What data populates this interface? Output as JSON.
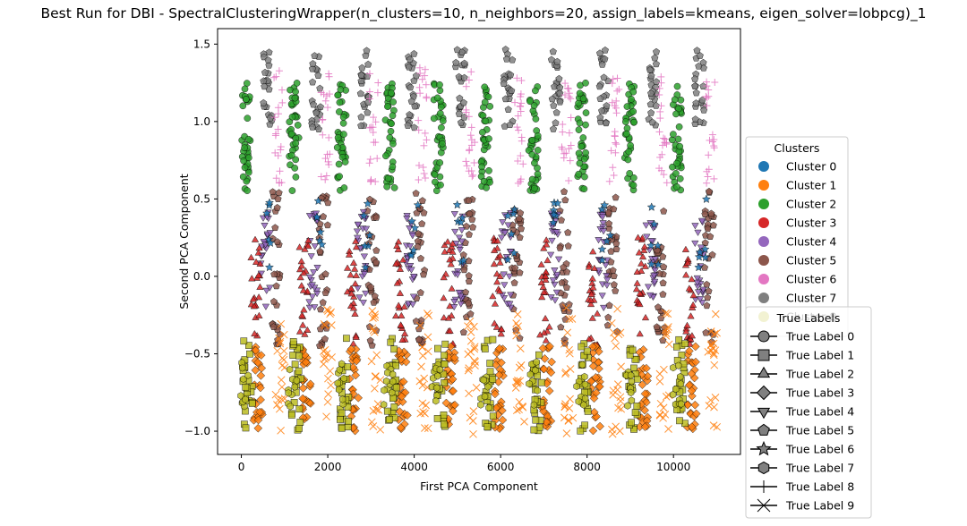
{
  "chart_data": {
    "type": "scatter",
    "title": "Best Run for DBI - SpectralClusteringWrapper(n_clusters=10, n_neighbors=20, assign_labels=kmeans, eigen_solver=lobpcg)_1",
    "xlabel": "First PCA Component",
    "ylabel": "Second PCA Component",
    "xlim": [
      -550,
      11550
    ],
    "ylim": [
      -1.15,
      1.6
    ],
    "xticks": [
      0,
      2000,
      4000,
      6000,
      8000,
      10000
    ],
    "yticks": [
      -1.0,
      -0.5,
      0.0,
      0.5,
      1.0,
      1.5
    ],
    "xtick_labels": [
      "0",
      "2000",
      "4000",
      "6000",
      "8000",
      "10000"
    ],
    "ytick_labels": [
      "−1.0",
      "−0.5",
      "0.0",
      "0.5",
      "1.0",
      "1.5"
    ],
    "grid": false,
    "cluster_legend": {
      "title": "Clusters",
      "placement": "center-right outside",
      "entries": [
        {
          "label": "Cluster 0",
          "color": "#1f77b4"
        },
        {
          "label": "Cluster 1",
          "color": "#ff7f0e"
        },
        {
          "label": "Cluster 2",
          "color": "#2ca02c"
        },
        {
          "label": "Cluster 3",
          "color": "#d62728"
        },
        {
          "label": "Cluster 4",
          "color": "#9467bd"
        },
        {
          "label": "Cluster 5",
          "color": "#8c564b"
        },
        {
          "label": "Cluster 6",
          "color": "#e377c2"
        },
        {
          "label": "Cluster 7",
          "color": "#7f7f7f"
        },
        {
          "label": "Cluster 8",
          "color": "#bcbd22"
        }
      ]
    },
    "label_legend": {
      "title": "True Labels",
      "placement": "lower-right outside",
      "entries": [
        {
          "label": "True Label 0",
          "marker": "circle"
        },
        {
          "label": "True Label 1",
          "marker": "square"
        },
        {
          "label": "True Label 2",
          "marker": "triangle-up"
        },
        {
          "label": "True Label 3",
          "marker": "diamond"
        },
        {
          "label": "True Label 4",
          "marker": "triangle-down"
        },
        {
          "label": "True Label 5",
          "marker": "pentagon"
        },
        {
          "label": "True Label 6",
          "marker": "star"
        },
        {
          "label": "True Label 7",
          "marker": "hexagon"
        },
        {
          "label": "True Label 8",
          "marker": "plus"
        },
        {
          "label": "True Label 9",
          "marker": "x"
        }
      ]
    },
    "series": [
      {
        "cluster": 2,
        "marker": "circle",
        "x_centers": [
          100,
          1220,
          2320,
          3440,
          4560,
          5660,
          6760,
          7880,
          8980,
          10080
        ],
        "y_range": [
          0.55,
          1.25
        ],
        "count": 36
      },
      {
        "cluster": 7,
        "marker": "pentagon",
        "x_centers": [
          620,
          1740,
          2840,
          3960,
          5060,
          6180,
          7280,
          8400,
          9500,
          10600
        ],
        "y_range": [
          0.95,
          1.48
        ],
        "count": 22
      },
      {
        "cluster": 6,
        "marker": "plus",
        "x_centers": [
          850,
          1950,
          3070,
          4180,
          5290,
          6410,
          7520,
          8630,
          9740,
          10850
        ],
        "y_range": [
          0.6,
          1.35
        ],
        "count": 20
      },
      {
        "cluster": 5,
        "marker": "pentagon",
        "x_centers": [
          800,
          1900,
          3020,
          4140,
          5250,
          6370,
          7480,
          8590,
          9700,
          10820
        ],
        "y_range": [
          -0.45,
          0.55
        ],
        "count": 26
      },
      {
        "cluster": 4,
        "marker": "triangle-down",
        "x_centers": [
          560,
          1680,
          2790,
          3900,
          5020,
          6130,
          7250,
          8360,
          9470,
          10590
        ],
        "y_range": [
          -0.2,
          0.42
        ],
        "count": 22
      },
      {
        "cluster": 3,
        "marker": "triangle-up",
        "x_centers": [
          330,
          1450,
          2560,
          3680,
          4790,
          5910,
          7020,
          8140,
          9250,
          10360
        ],
        "y_range": [
          -0.45,
          0.25
        ],
        "count": 22
      },
      {
        "cluster": 0,
        "marker": "star",
        "x_centers": [
          640,
          1760,
          2870,
          3990,
          5100,
          6220,
          7330,
          8450,
          9560,
          10680
        ],
        "y_range": [
          0.05,
          0.5
        ],
        "count": 6
      },
      {
        "cluster": 1,
        "marker": "diamond",
        "x_centers": [
          380,
          1500,
          2610,
          3730,
          4840,
          5960,
          7070,
          8190,
          9300,
          10420
        ],
        "y_range": [
          -1.0,
          -0.45
        ],
        "count": 26
      },
      {
        "cluster": 1,
        "marker": "x",
        "x_centers": [
          900,
          2000,
          3120,
          4230,
          5340,
          6460,
          7570,
          8680,
          9790,
          10910
        ],
        "y_range": [
          -1.02,
          -0.2
        ],
        "count": 20
      },
      {
        "cluster": 8,
        "marker": "square",
        "x_centers": [
          150,
          1270,
          2380,
          3490,
          4610,
          5720,
          6840,
          7950,
          9060,
          10180
        ],
        "y_range": [
          -1.0,
          -0.4
        ],
        "count": 22
      },
      {
        "cluster": 8,
        "marker": "hexagon",
        "x_centers": [
          60,
          1180,
          2290,
          3400,
          4520,
          5630,
          6750,
          7860,
          8970,
          10090
        ],
        "y_range": [
          -0.85,
          -0.55
        ],
        "count": 10
      }
    ]
  }
}
